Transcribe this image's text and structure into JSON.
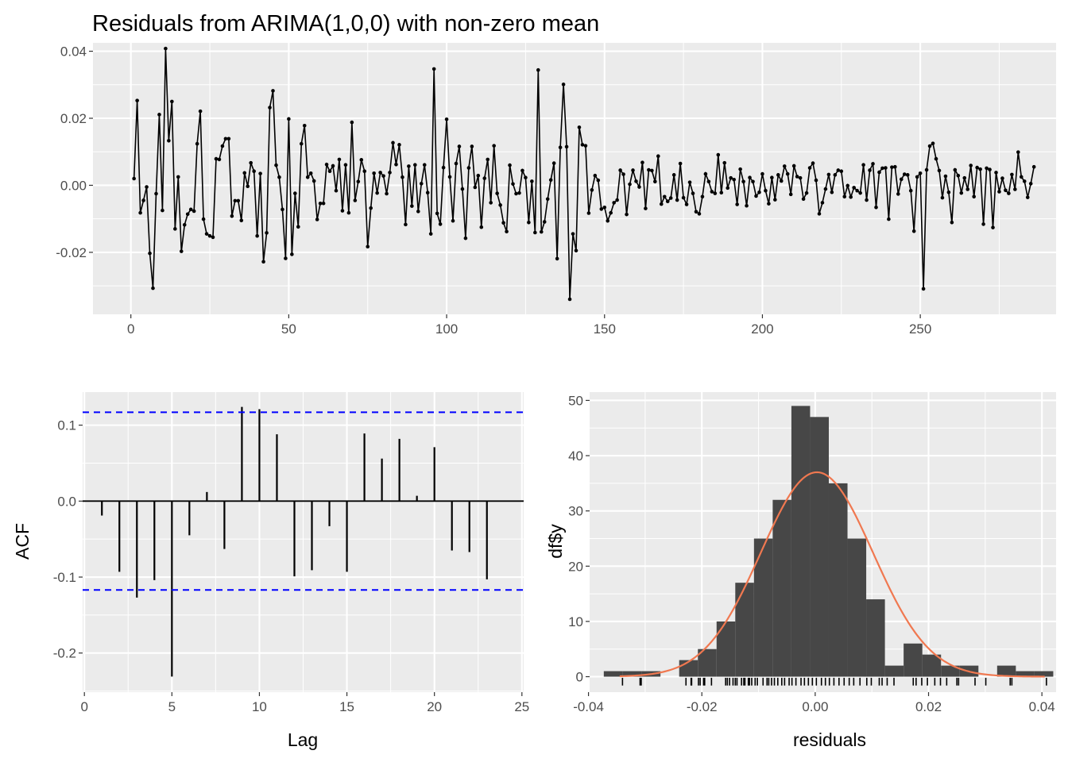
{
  "colors": {
    "panel_bg": "#EBEBEB",
    "grid": "#FFFFFF",
    "series": "#000000",
    "ci_line": "#0000FF",
    "hist_bar": "#474747",
    "density": "#F07850",
    "tick_text": "#4D4D4D"
  },
  "chart_data": [
    {
      "id": "residual-series",
      "type": "line",
      "title": "Residuals from ARIMA(1,0,0) with non-zero mean",
      "xlabel": "",
      "ylabel": "",
      "xlim": [
        -12,
        293
      ],
      "ylim": [
        -0.0385,
        0.0425
      ],
      "xticks": [
        0,
        50,
        100,
        150,
        200,
        250
      ],
      "yticks": [
        -0.02,
        0.0,
        0.02,
        0.04
      ],
      "ytick_labels": [
        "-0.02",
        "0.00",
        "0.02",
        "0.04"
      ],
      "grid": true,
      "points": true,
      "x_start": 1,
      "values": [
        0.002,
        0.0253,
        -0.0082,
        -0.0045,
        -0.0005,
        -0.0203,
        -0.0307,
        -0.0025,
        0.0211,
        -0.0075,
        0.0408,
        0.0133,
        0.025,
        -0.013,
        0.0025,
        -0.0197,
        -0.0118,
        -0.0086,
        -0.0072,
        -0.0077,
        0.0124,
        0.0221,
        -0.0101,
        -0.0145,
        -0.0151,
        -0.0155,
        0.0079,
        0.0077,
        0.0117,
        0.0139,
        0.0139,
        -0.0092,
        -0.0046,
        -0.0046,
        -0.0105,
        0.0037,
        -0.0003,
        0.0067,
        0.0042,
        -0.0151,
        0.0035,
        -0.0228,
        -0.0142,
        0.0232,
        0.0282,
        0.006,
        0.0024,
        -0.0072,
        -0.0218,
        0.0198,
        -0.0206,
        -0.0024,
        -0.0124,
        0.0124,
        0.0178,
        0.0024,
        0.0036,
        0.0013,
        -0.0102,
        -0.0054,
        -0.0054,
        0.0062,
        0.0042,
        0.0058,
        -0.0016,
        0.0077,
        -0.0076,
        0.0061,
        -0.0082,
        0.0188,
        -0.0045,
        0.0011,
        0.0076,
        0.0042,
        -0.0183,
        -0.0068,
        0.0036,
        -0.0023,
        0.0038,
        0.0028,
        -0.0025,
        0.0038,
        0.0127,
        0.0062,
        0.0121,
        0.0024,
        -0.0117,
        0.0057,
        -0.0062,
        0.0061,
        -0.0078,
        0.0005,
        0.0061,
        -0.0022,
        -0.0145,
        0.0347,
        -0.0084,
        -0.0116,
        0.0053,
        0.0197,
        0.0025,
        -0.0106,
        0.0065,
        0.0116,
        -0.0011,
        -0.0158,
        0.0052,
        0.0116,
        -0.0006,
        0.0029,
        -0.0125,
        0.0021,
        0.0077,
        -0.0052,
        0.0118,
        -0.0024,
        -0.0059,
        -0.0112,
        -0.0138,
        0.006,
        0.0004,
        -0.0025,
        -0.0023,
        0.0044,
        0.0023,
        -0.0111,
        0.0012,
        -0.0141,
        0.0344,
        -0.0139,
        -0.0109,
        -0.0041,
        0.0016,
        0.0066,
        -0.0219,
        0.0113,
        0.0301,
        0.0115,
        -0.034,
        -0.0145,
        -0.0195,
        0.0173,
        0.0121,
        0.0118,
        -0.0083,
        -0.0014,
        0.0029,
        0.0015,
        -0.0071,
        -0.0066,
        -0.0106,
        -0.0082,
        -0.0052,
        -0.0044,
        0.0045,
        0.0033,
        -0.0087,
        0.0003,
        0.0045,
        0.0012,
        -0.0005,
        0.0068,
        -0.0069,
        0.0046,
        0.0044,
        0.0011,
        0.0087,
        -0.0056,
        -0.0034,
        -0.0048,
        -0.0038,
        0.0031,
        -0.0044,
        0.0065,
        -0.0037,
        -0.0057,
        0.0009,
        -0.0024,
        -0.0079,
        -0.0085,
        -0.0034,
        0.0034,
        0.0011,
        -0.0019,
        -0.0024,
        0.0091,
        -0.0022,
        0.0067,
        -0.0008,
        0.0022,
        0.0017,
        -0.0057,
        0.0048,
        0.0011,
        -0.0061,
        0.0023,
        0.0011,
        -0.0032,
        -0.0021,
        0.0034,
        -0.0016,
        -0.0055,
        0.0023,
        -0.0043,
        0.0031,
        0.0013,
        0.0057,
        0.0034,
        -0.0027,
        0.0058,
        0.0026,
        0.0022,
        -0.0041,
        -0.0023,
        0.0052,
        0.0066,
        0.0015,
        -0.0085,
        -0.0052,
        -0.0011,
        0.0032,
        -0.0021,
        0.0031,
        0.0045,
        0.0042,
        -0.0034,
        -0.0001,
        -0.0035,
        -0.0007,
        -0.0016,
        -0.0023,
        0.0061,
        -0.0044,
        0.0045,
        0.0064,
        -0.0066,
        0.0039,
        0.0051,
        0.0052,
        -0.0101,
        0.0054,
        0.0055,
        -0.0026,
        0.0018,
        0.0033,
        0.0031,
        -0.0016,
        -0.0137,
        0.0025,
        0.0036,
        -0.0309,
        0.0046,
        0.0117,
        0.0125,
        0.0079,
        0.0044,
        -0.0037,
        0.0027,
        -0.0021,
        -0.0111,
        0.0046,
        0.0029,
        -0.0023,
        0.0022,
        -0.0012,
        0.0059,
        -0.0034,
        0.0053,
        0.0048,
        -0.0116,
        0.0051,
        0.0047,
        -0.0126,
        0.0038,
        -0.0019,
        0.0021,
        -0.0015,
        -0.0024,
        0.0032,
        -0.0012,
        0.0099,
        0.0025,
        0.0012,
        -0.0036,
        0.0005,
        0.0055
      ]
    },
    {
      "id": "acf",
      "type": "bar",
      "xlabel": "Lag",
      "ylabel": "ACF",
      "xlim": [
        -0.1,
        25.1
      ],
      "ylim": [
        -0.2515,
        0.1435
      ],
      "xticks": [
        0,
        5,
        10,
        15,
        20,
        25
      ],
      "yticks": [
        -0.2,
        -0.1,
        0.0,
        0.1
      ],
      "ytick_labels": [
        "-0.2",
        "-0.1",
        "0.0",
        "0.1"
      ],
      "grid": true,
      "lags": [
        1,
        2,
        3,
        4,
        5,
        6,
        7,
        8,
        9,
        10,
        11,
        12,
        13,
        14,
        15,
        16,
        17,
        18,
        19,
        20,
        21,
        22,
        23
      ],
      "values": [
        -0.019,
        -0.093,
        -0.127,
        -0.104,
        -0.231,
        -0.045,
        0.012,
        -0.063,
        0.124,
        0.121,
        0.088,
        -0.099,
        -0.091,
        -0.033,
        -0.093,
        0.089,
        0.056,
        0.082,
        0.007,
        0.071,
        -0.065,
        -0.067,
        -0.103
      ],
      "confidence_bounds": [
        -0.117,
        0.117
      ]
    },
    {
      "id": "residual-histogram",
      "type": "bar",
      "xlabel": "residuals",
      "ylabel": "df$y",
      "xlim": [
        -0.0398,
        0.0425
      ],
      "ylim": [
        -2.8,
        51.5
      ],
      "xticks": [
        -0.04,
        -0.02,
        0.0,
        0.02,
        0.04
      ],
      "xtick_labels": [
        "-0.04",
        "-0.02",
        "0.00",
        "0.02",
        "0.04"
      ],
      "yticks": [
        0,
        10,
        20,
        30,
        40,
        50
      ],
      "grid": true,
      "bin_edges": [
        -0.0373,
        -0.034,
        -0.0306,
        -0.0273,
        -0.024,
        -0.0207,
        -0.0174,
        -0.0141,
        -0.0108,
        -0.0075,
        -0.0042,
        -0.0009,
        0.0024,
        0.0057,
        0.009,
        0.0123,
        0.0156,
        0.0189,
        0.0222,
        0.0255,
        0.0288,
        0.0321,
        0.0354,
        0.0387,
        0.042
      ],
      "counts": [
        1,
        1,
        1,
        0,
        3,
        5,
        10,
        17,
        25,
        32,
        49,
        47,
        35,
        25,
        14,
        2,
        6,
        4,
        2,
        2,
        0,
        2,
        1,
        1
      ],
      "density_curve": {
        "mean": 0.0003,
        "sd": 0.0099,
        "peak": 37
      },
      "rug": [
        -0.034,
        -0.0307,
        -0.0309,
        -0.0228,
        -0.0219,
        -0.0218,
        -0.0206,
        -0.0203,
        -0.0197,
        -0.0195,
        -0.0183,
        -0.0158,
        -0.0155,
        -0.0151,
        -0.0145,
        -0.0141,
        -0.0138,
        -0.013,
        -0.0126,
        -0.0124,
        -0.0118,
        -0.0116,
        -0.0112,
        -0.0106,
        -0.0102,
        -0.0092,
        -0.0085,
        -0.0082,
        -0.0077,
        -0.0072,
        -0.0066,
        -0.0059,
        -0.0054,
        -0.0046,
        -0.0041,
        -0.0034,
        -0.0025,
        -0.0019,
        -0.0012,
        -0.0005,
        0.0002,
        0.0011,
        0.0018,
        0.0025,
        0.0033,
        0.0042,
        0.0051,
        0.006,
        0.0068,
        0.0079,
        0.0091,
        0.0099,
        0.0113,
        0.0118,
        0.0127,
        0.0139,
        0.0173,
        0.0178,
        0.0188,
        0.0198,
        0.0211,
        0.0221,
        0.0232,
        0.025,
        0.0253,
        0.0282,
        0.0301,
        0.0344,
        0.0347,
        0.0408
      ]
    }
  ]
}
